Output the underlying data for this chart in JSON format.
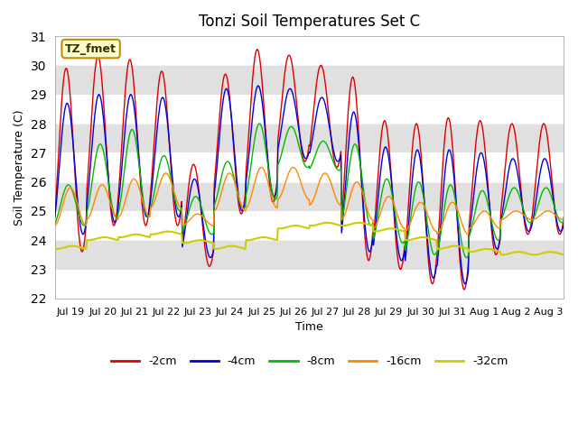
{
  "title": "Tonzi Soil Temperatures Set C",
  "xlabel": "Time",
  "ylabel": "Soil Temperature (C)",
  "ylim": [
    22.0,
    31.0
  ],
  "yticks": [
    22.0,
    23.0,
    24.0,
    25.0,
    26.0,
    27.0,
    28.0,
    29.0,
    30.0,
    31.0
  ],
  "x_tick_labels": [
    "Jul 19",
    "Jul 20",
    "Jul 21",
    "Jul 22",
    "Jul 23",
    "Jul 24",
    "Jul 25",
    "Jul 26",
    "Jul 27",
    "Jul 28",
    "Jul 29",
    "Jul 30",
    "Jul 31",
    "Aug 1",
    "Aug 2",
    "Aug 3"
  ],
  "legend_labels": [
    "-2cm",
    "-4cm",
    "-8cm",
    "-16cm",
    "-32cm"
  ],
  "annotation_text": "TZ_fmet",
  "annotation_bg": "#ffffcc",
  "annotation_border": "#cc8800",
  "colors": {
    "neg2": "#dd0000",
    "neg4": "#0000dd",
    "neg8": "#00bb00",
    "neg16": "#ff8800",
    "neg32": "#cccc00"
  },
  "bg_color": "#e8e8e8"
}
